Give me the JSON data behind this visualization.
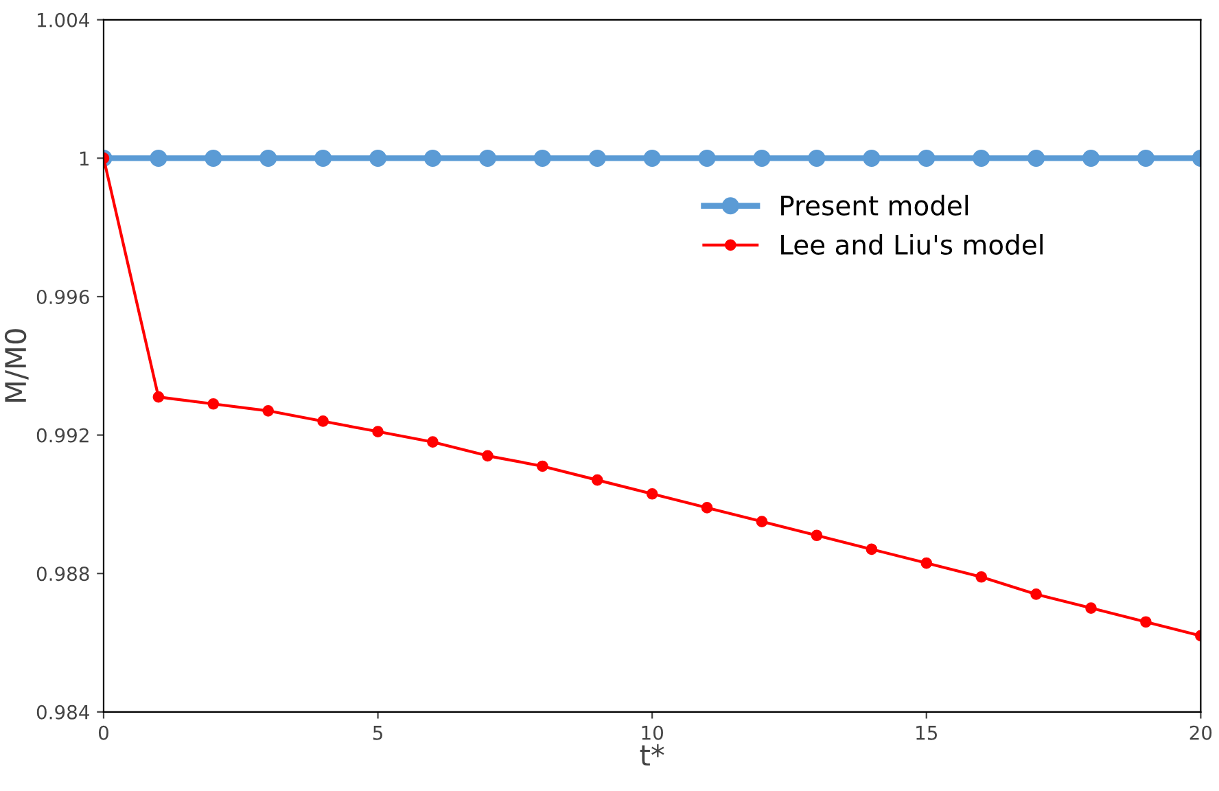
{
  "chart_data": {
    "type": "line",
    "xlabel": "t*",
    "ylabel": "M/M0",
    "x": [
      0,
      1,
      2,
      3,
      4,
      5,
      6,
      7,
      8,
      9,
      10,
      11,
      12,
      13,
      14,
      15,
      16,
      17,
      18,
      19,
      20
    ],
    "series": [
      {
        "name": "Present model",
        "color": "#5b9bd5",
        "values": [
          1,
          1,
          1,
          1,
          1,
          1,
          1,
          1,
          1,
          1,
          1,
          1,
          1,
          1,
          1,
          1,
          1,
          1,
          1,
          1,
          1
        ]
      },
      {
        "name": "Lee and Liu's model",
        "color": "#ff0000",
        "values": [
          1,
          0.9931,
          0.9929,
          0.9927,
          0.9924,
          0.9921,
          0.9918,
          0.9914,
          0.9911,
          0.9907,
          0.9903,
          0.9899,
          0.9895,
          0.9891,
          0.9887,
          0.9883,
          0.9879,
          0.9874,
          0.987,
          0.9866,
          0.9862
        ]
      }
    ],
    "xlim": [
      0,
      20
    ],
    "xticks": [
      0,
      5,
      10,
      15,
      20
    ],
    "ylim": [
      0.984,
      1.004
    ],
    "yticks": [
      0.984,
      0.988,
      0.992,
      0.996,
      1,
      1.004
    ],
    "marker": "circle",
    "line_style": "solid",
    "grid": false,
    "legend": "right"
  }
}
